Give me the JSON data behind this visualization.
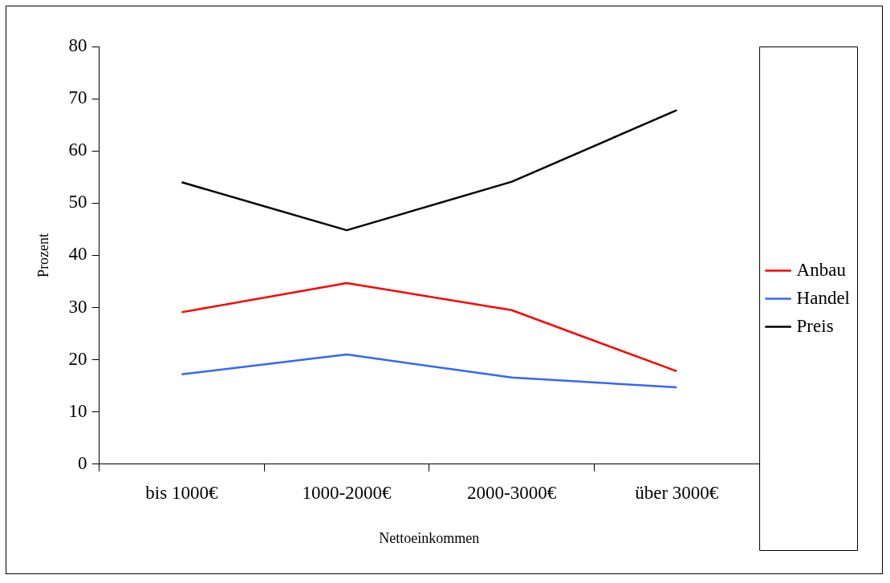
{
  "chart_data": {
    "type": "line",
    "xlabel": "Nettoeinkommen",
    "ylabel": "Prozent",
    "categories": [
      "bis 1000€",
      "1000-2000€",
      "2000-3000€",
      "über 3000€"
    ],
    "series": [
      {
        "name": "Anbau",
        "color": "#ff0000",
        "values": [
          29.1,
          34.7,
          29.5,
          17.8
        ]
      },
      {
        "name": "Handel",
        "color": "#3366ff",
        "values": [
          17.2,
          21.0,
          16.6,
          14.7
        ]
      },
      {
        "name": "Preis",
        "color": "#000000",
        "values": [
          54.0,
          44.8,
          54.1,
          67.8
        ]
      }
    ],
    "ylim": [
      0,
      80
    ],
    "yticks": [
      0,
      10,
      20,
      30,
      40,
      50,
      60,
      70,
      80
    ],
    "grid": false,
    "legend": "right",
    "marker": "none",
    "line_style": "solid"
  }
}
